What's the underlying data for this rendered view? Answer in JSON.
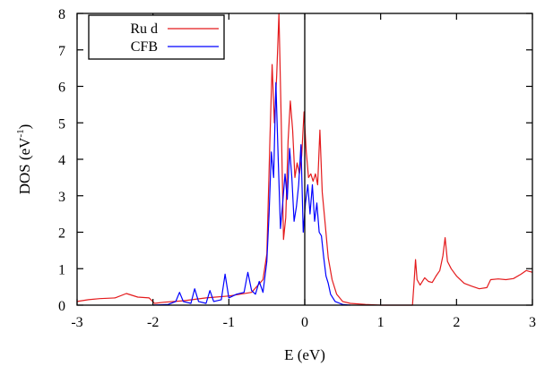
{
  "chart_data": {
    "type": "line",
    "xlabel": "E (eV)",
    "ylabel": {
      "prefix": "DOS (eV",
      "superscript": "-1",
      "suffix": ")"
    },
    "xlim": [
      -3,
      3
    ],
    "ylim": [
      0,
      8
    ],
    "xticks": [
      "-3",
      "-2",
      "-1",
      "0",
      "1",
      "2",
      "3"
    ],
    "yticks": [
      "0",
      "1",
      "2",
      "3",
      "4",
      "5",
      "6",
      "7",
      "8"
    ],
    "legend_position": "top-left",
    "fermi_line_x": 0,
    "series": [
      {
        "name": "Ru d",
        "color": "#e41a1c",
        "points": [
          [
            -3.0,
            0.1
          ],
          [
            -2.85,
            0.15
          ],
          [
            -2.7,
            0.18
          ],
          [
            -2.5,
            0.2
          ],
          [
            -2.35,
            0.32
          ],
          [
            -2.2,
            0.22
          ],
          [
            -2.05,
            0.2
          ],
          [
            -1.98,
            0.05
          ],
          [
            -1.85,
            0.08
          ],
          [
            -1.6,
            0.12
          ],
          [
            -1.3,
            0.2
          ],
          [
            -1.0,
            0.25
          ],
          [
            -0.7,
            0.35
          ],
          [
            -0.55,
            0.7
          ],
          [
            -0.5,
            1.4
          ],
          [
            -0.46,
            4.5
          ],
          [
            -0.43,
            6.6
          ],
          [
            -0.4,
            5.0
          ],
          [
            -0.37,
            6.3
          ],
          [
            -0.34,
            8.0
          ],
          [
            -0.31,
            5.0
          ],
          [
            -0.28,
            1.8
          ],
          [
            -0.25,
            2.4
          ],
          [
            -0.22,
            4.5
          ],
          [
            -0.19,
            5.6
          ],
          [
            -0.16,
            4.8
          ],
          [
            -0.13,
            3.5
          ],
          [
            -0.1,
            3.9
          ],
          [
            -0.07,
            3.6
          ],
          [
            -0.04,
            4.1
          ],
          [
            -0.01,
            5.3
          ],
          [
            0.02,
            4.2
          ],
          [
            0.05,
            3.5
          ],
          [
            0.08,
            3.6
          ],
          [
            0.11,
            3.4
          ],
          [
            0.14,
            3.6
          ],
          [
            0.17,
            3.3
          ],
          [
            0.2,
            4.8
          ],
          [
            0.23,
            3.1
          ],
          [
            0.27,
            2.2
          ],
          [
            0.31,
            1.3
          ],
          [
            0.36,
            0.7
          ],
          [
            0.42,
            0.3
          ],
          [
            0.5,
            0.1
          ],
          [
            0.6,
            0.05
          ],
          [
            0.8,
            0.02
          ],
          [
            1.0,
            0.0
          ],
          [
            1.2,
            0.0
          ],
          [
            1.42,
            0.0
          ],
          [
            1.44,
            0.6
          ],
          [
            1.46,
            1.25
          ],
          [
            1.48,
            0.7
          ],
          [
            1.52,
            0.55
          ],
          [
            1.58,
            0.75
          ],
          [
            1.63,
            0.65
          ],
          [
            1.68,
            0.62
          ],
          [
            1.73,
            0.8
          ],
          [
            1.78,
            0.95
          ],
          [
            1.82,
            1.35
          ],
          [
            1.85,
            1.85
          ],
          [
            1.88,
            1.2
          ],
          [
            1.93,
            1.0
          ],
          [
            2.0,
            0.8
          ],
          [
            2.1,
            0.6
          ],
          [
            2.2,
            0.52
          ],
          [
            2.3,
            0.45
          ],
          [
            2.4,
            0.48
          ],
          [
            2.45,
            0.7
          ],
          [
            2.55,
            0.72
          ],
          [
            2.65,
            0.7
          ],
          [
            2.75,
            0.73
          ],
          [
            2.85,
            0.85
          ],
          [
            2.92,
            0.95
          ],
          [
            3.0,
            0.9
          ]
        ]
      },
      {
        "name": "CFB",
        "color": "#0000ff",
        "points": [
          [
            -2.0,
            0.0
          ],
          [
            -1.8,
            0.02
          ],
          [
            -1.7,
            0.1
          ],
          [
            -1.65,
            0.35
          ],
          [
            -1.6,
            0.1
          ],
          [
            -1.5,
            0.05
          ],
          [
            -1.45,
            0.45
          ],
          [
            -1.4,
            0.1
          ],
          [
            -1.3,
            0.05
          ],
          [
            -1.25,
            0.4
          ],
          [
            -1.2,
            0.1
          ],
          [
            -1.1,
            0.15
          ],
          [
            -1.05,
            0.85
          ],
          [
            -1.0,
            0.2
          ],
          [
            -0.9,
            0.3
          ],
          [
            -0.8,
            0.35
          ],
          [
            -0.75,
            0.9
          ],
          [
            -0.7,
            0.4
          ],
          [
            -0.65,
            0.3
          ],
          [
            -0.6,
            0.65
          ],
          [
            -0.55,
            0.35
          ],
          [
            -0.5,
            1.2
          ],
          [
            -0.47,
            2.5
          ],
          [
            -0.44,
            4.2
          ],
          [
            -0.41,
            3.5
          ],
          [
            -0.38,
            6.1
          ],
          [
            -0.35,
            4.0
          ],
          [
            -0.32,
            2.1
          ],
          [
            -0.29,
            2.8
          ],
          [
            -0.26,
            3.6
          ],
          [
            -0.23,
            2.9
          ],
          [
            -0.2,
            4.3
          ],
          [
            -0.17,
            3.5
          ],
          [
            -0.14,
            2.3
          ],
          [
            -0.11,
            2.7
          ],
          [
            -0.08,
            3.3
          ],
          [
            -0.05,
            4.4
          ],
          [
            -0.02,
            2.0
          ],
          [
            0.01,
            2.8
          ],
          [
            0.04,
            3.3
          ],
          [
            0.07,
            2.5
          ],
          [
            0.1,
            3.3
          ],
          [
            0.13,
            2.3
          ],
          [
            0.16,
            2.8
          ],
          [
            0.19,
            2.0
          ],
          [
            0.22,
            1.9
          ],
          [
            0.25,
            1.3
          ],
          [
            0.28,
            0.8
          ],
          [
            0.31,
            0.6
          ],
          [
            0.34,
            0.3
          ],
          [
            0.4,
            0.1
          ],
          [
            0.5,
            0.02
          ],
          [
            0.6,
            0.0
          ]
        ]
      }
    ]
  }
}
